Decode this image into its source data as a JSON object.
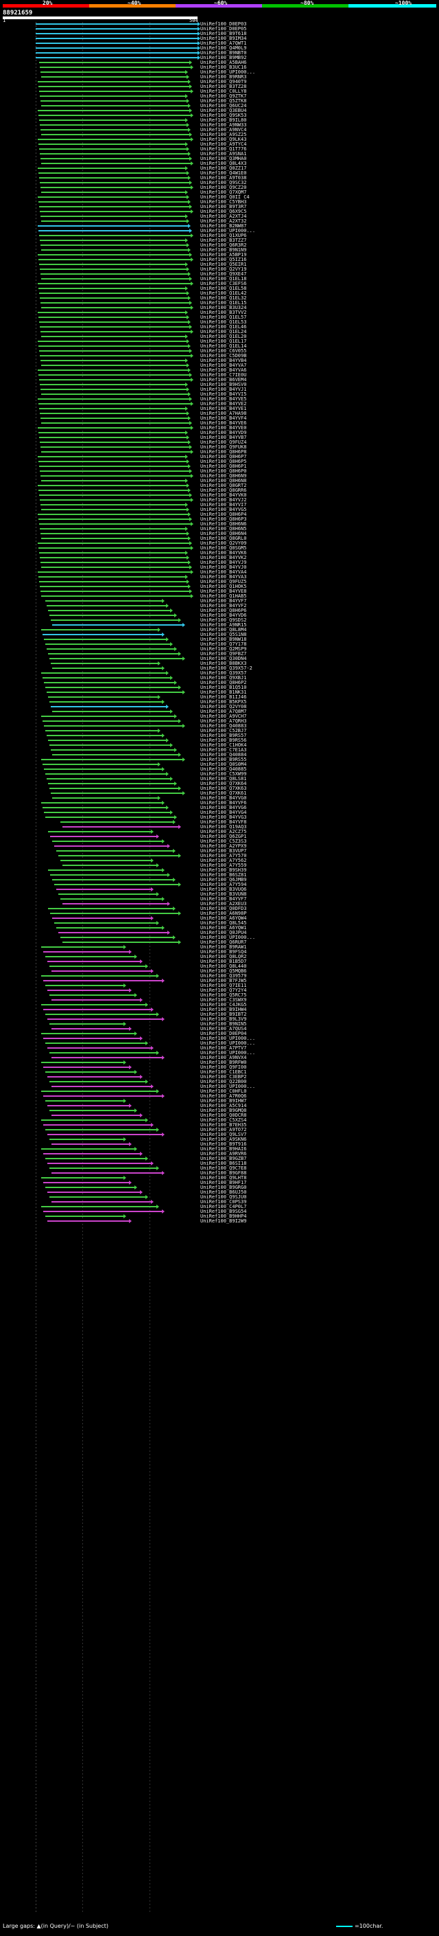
{
  "legend": {
    "percent_labels": [
      "20%",
      "~40%",
      "~60%",
      "~80%",
      "~100%"
    ],
    "colors": [
      "#ff0000",
      "#ff8000",
      "#b040ff",
      "#00c000",
      "#00ffff"
    ]
  },
  "query": {
    "id": "88921659",
    "range_start": "1",
    "range_end": "504"
  },
  "footer": {
    "gap_legend": "Large gaps: ▲(in Query)/~ (in Subject)",
    "scale_legend": "=100char."
  },
  "hits": [
    "UniRef100_D0EP03",
    "UniRef100_D0EP05",
    "UniRef100_B9T618",
    "UniRef100_B9IM34",
    "UniRef100_A7QWT1",
    "UniRef100_Q4M0L9",
    "UniRef100_B9NBT0",
    "UniRef100_B9MB92",
    "UniRef100_A5BAH6",
    "UniRef100_B3UC16",
    "UniRef100_UPI000...",
    "UniRef100_B9RNR3",
    "UniRef100_Q940T9",
    "UniRef100_B3TZ28",
    "UniRef100_C0LLY8",
    "UniRef100_Q9ZTK7",
    "UniRef100_Q5ZTK8",
    "UniRef100_Q6UC24",
    "UniRef100_Q3EBU4",
    "UniRef100_Q9SK53",
    "UniRef100_B9IL80",
    "UniRef100_A9NW33",
    "UniRef100_A9NVC4",
    "UniRef100_A9SZ25",
    "UniRef100_Q9LK43",
    "UniRef100_A9TYC4",
    "UniRef100_Q1T776",
    "UniRef100_A9SNA1",
    "UniRef100_Q3MHA0",
    "UniRef100_Q8L4X3",
    "UniRef100_Q0ZZ17",
    "UniRef100_Q4W1E0",
    "UniRef100_A9T038",
    "UniRef100_Q9SC32",
    "UniRef100_Q9CZ20",
    "UniRef100_Q7XQM7",
    "UniRef100_Q0II C4",
    "UniRef100_C5YBH3",
    "UniRef100_B9T3R7",
    "UniRef100_Q6X9C5",
    "UniRef100_A2XTJ4",
    "UniRef100_A2XT32",
    "UniRef100_B2NW87",
    "UniRef100_UPI000...",
    "UniRef100_Q1XUP6",
    "UniRef100_B3TZZ7",
    "UniRef100_Q6R3R2",
    "UniRef100_B9N1N9",
    "UniRef100_A5BP19",
    "UniRef100_Q5IZ16",
    "UniRef100_Q5EIR1",
    "UniRef100_Q2VY19",
    "UniRef100_Q9XE47",
    "UniRef100_Q1EL18",
    "UniRef100_C3EFS6",
    "UniRef100_Q1EL58",
    "UniRef100_Q1EL42",
    "UniRef100_Q1EL32",
    "UniRef100_Q1EL15",
    "UniRef100_B3U324",
    "UniRef100_B3TVV2",
    "UniRef100_Q1EL57",
    "UniRef100_Q1EL53",
    "UniRef100_Q1EL46",
    "UniRef100_Q1EL24",
    "UniRef100_Q1EL20",
    "UniRef100_Q1EL17",
    "UniRef100_Q1EL14",
    "UniRef100_C6V055",
    "UniRef100_C5D09B",
    "UniRef100_B4YVB4",
    "UniRef100_B4YVA7",
    "UniRef100_B4YVA6",
    "UniRef100_C7IE0U",
    "UniRef100_B6VEM4",
    "UniRef100_B9HSV0",
    "UniRef100_B4YVJ1",
    "UniRef100_B4YVI5",
    "UniRef100_B4YVE5",
    "UniRef100_B4YVE2",
    "UniRef100_B4YVE1",
    "UniRef100_A7HA98",
    "UniRef100_B4YVF4",
    "UniRef100_B4YVE6",
    "UniRef100_B4YVE0",
    "UniRef100_B4YVD9",
    "UniRef100_B4YVB7",
    "UniRef100_Q9FUZ4",
    "UniRef100_Q9FUK8",
    "UniRef100_Q8H6P8",
    "UniRef100_Q8H6P7",
    "UniRef100_Q8H6P5",
    "UniRef100_Q8H6P1",
    "UniRef100_Q8H6P0",
    "UniRef100_Q8H6N9",
    "UniRef100_Q8H6N8",
    "UniRef100_Q8GRT2",
    "UniRef100_Q8GRR6",
    "UniRef100_B4YVK0",
    "UniRef100_B4YVJ2",
    "UniRef100_B4YVI7",
    "UniRef100_B4YVG5",
    "UniRef100_Q8H6P4",
    "UniRef100_Q8H6P3",
    "UniRef100_Q8H6N6",
    "UniRef100_Q8H6N5",
    "UniRef100_Q8H6N4",
    "UniRef100_Q8GRL0",
    "UniRef100_Q2VY09",
    "UniRef100_Q0SGM5",
    "UniRef100_B4YVK6",
    "UniRef100_B4YVK2",
    "UniRef100_B4YVJ9",
    "UniRef100_B4YVJ0",
    "UniRef100_B4YVA4",
    "UniRef100_B4YVA3",
    "UniRef100_Q9FUZ5",
    "UniRef100_Q1HOK5",
    "UniRef100_B4YVE8",
    "UniRef100_Q1HAB5",
    "UniRef100_B4YVF7",
    "UniRef100_B4YVF2",
    "UniRef100_Q8H6P6",
    "UniRef100_B4YVD6",
    "UniRef100_Q9SDS2",
    "UniRef100_A9NR15",
    "UniRef100_Q8L8M4",
    "UniRef100_Q5S1N8",
    "UniRef100_B9NW18",
    "UniRef100_Q7Y178",
    "UniRef100_Q2MSP9",
    "UniRef100_Q9FBZ7",
    "UniRef100_Q30DN4",
    "UniRef100_B8BKX3",
    "UniRef100_Q39X57-2",
    "UniRef100_Q39X57",
    "UniRef100_Q9XBJ1",
    "UniRef100_Q8H6P2",
    "UniRef100_B1Q510",
    "UniRef100_B1NK31",
    "UniRef100_B1IJ46",
    "UniRef100_B5KPX5",
    "UniRef100_Q2VY08",
    "UniRef100_A7Q8M7",
    "UniRef100_A9VCH7",
    "UniRef100_A7QRH3",
    "UniRef100_Q40883",
    "UniRef100_C52BJ7",
    "UniRef100_B9RS57",
    "UniRef100_B9RS56",
    "UniRef100_C1HOK4",
    "UniRef100_C7E1A3",
    "UniRef100_Q40884",
    "UniRef100_B9RS55",
    "UniRef100_Q0S0M4",
    "UniRef100_Q40885",
    "UniRef100_C5XW99",
    "UniRef100_Q8LS81",
    "UniRef100_Q7XK64",
    "UniRef100_Q7XK63",
    "UniRef100_Q7XK61",
    "UniRef100_B4YVG0",
    "UniRef100_B4YVF6",
    "UniRef100_B4YVG6",
    "UniRef100_B4YVG4",
    "UniRef100_B4YVG3",
    "UniRef100_B4YVF8",
    "UniRef100_Q19AQ3",
    "UniRef100_A2CZ75",
    "UniRef100_Q6ZGP1",
    "UniRef100_C5Z3S3",
    "UniRef100_A2YPX9",
    "UniRef100_B3VUP7",
    "UniRef100_A7Y570",
    "UniRef100_A7Y562",
    "UniRef100_A7Y559",
    "UniRef100_B9SH39",
    "UniRef100_B6SZ81",
    "UniRef100_Q6JMB9",
    "UniRef100_A7Y594",
    "UniRef100_B3VUQ6",
    "UniRef100_B3VUN8",
    "UniRef100_B4YVF7",
    "UniRef100_A2XEU3",
    "UniRef100_Q0DFD3",
    "UniRef100_A6N98P",
    "UniRef100_A6YQW4",
    "UniRef100_Q8L545",
    "UniRef100_A6YQW1",
    "UniRef100_Q0JPU4",
    "UniRef100_UPI000...",
    "UniRef100_Q6RUR7",
    "UniRef100_B9RAW1",
    "UniRef100_B9FSQ4",
    "UniRef100_Q8LQR2",
    "UniRef100_B1B5D7",
    "UniRef100_Q8L440",
    "UniRef100_Q5MQB6",
    "UniRef100_Q39579",
    "UniRef100_B7FJW5",
    "UniRef100_Q7IE11",
    "UniRef100_Q7Y2Y4",
    "UniRef100_Q5RC75",
    "UniRef100_C3SWX9",
    "UniRef100_C4JKG5",
    "UniRef100_B9IHW4",
    "UniRef100_B9IBT2",
    "UniRef100_B9L3V9",
    "UniRef100_B9NIN5",
    "UniRef100_A7QUS4",
    "UniRef100_D0EP04",
    "UniRef100_UPI000...",
    "UniRef100_UPI000...",
    "UniRef100_A7PTV7",
    "UniRef100_UPI000...",
    "UniRef100_A9NVX4",
    "UniRef100_B9RFW0",
    "UniRef100_Q9FI00",
    "UniRef100_C1EBC1",
    "UniRef100_C3EBP2",
    "UniRef100_Q22B00",
    "UniRef100_UPI000...",
    "UniRef100_C0HFL0",
    "UniRef100_A7R0Q6",
    "UniRef100_B9IHW7",
    "UniRef100_A5C914",
    "UniRef100_B9GMQ8",
    "UniRef100_Q0DCR8",
    "UniRef100_C5XZS4",
    "UniRef100_B7EH35",
    "UniRef100_A9TO72",
    "UniRef100_Q9LSV7",
    "UniRef100_A9SKN6",
    "UniRef100_B9T916",
    "UniRef100_B9HAI6",
    "UniRef100_A9RVR6",
    "UniRef100_B9GZB7",
    "UniRef100_B6SI18",
    "UniRef100_Q9C7E8",
    "UniRef100_B9GF88",
    "UniRef100_Q9LHT8",
    "UniRef100_B9HF17",
    "UniRef100_B9GRG0",
    "UniRef100_B6UJ50",
    "UniRef100_Q9SJU0",
    "UniRef100_C0PS39",
    "UniRef100_C4P0L7",
    "UniRef100_B9SG54",
    "UniRef100_B9HHP4",
    "UniRef100_B9I2W9"
  ]
}
